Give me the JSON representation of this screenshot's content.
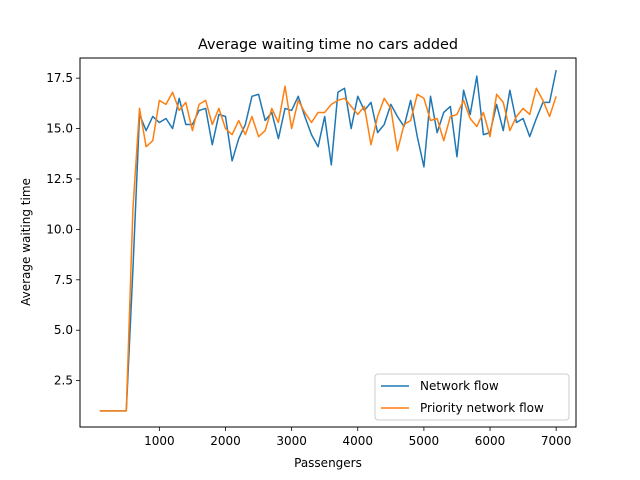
{
  "chart_data": {
    "type": "line",
    "title": "Average waiting time no cars added",
    "xlabel": "Passengers",
    "ylabel": "Average waiting time",
    "xlim": [
      -200,
      7300
    ],
    "ylim": [
      0.2,
      18.5
    ],
    "xticks": [
      1000,
      2000,
      3000,
      4000,
      5000,
      6000,
      7000
    ],
    "xtick_labels": [
      "1000",
      "2000",
      "3000",
      "4000",
      "5000",
      "6000",
      "7000"
    ],
    "yticks": [
      2.5,
      5.0,
      7.5,
      10.0,
      12.5,
      15.0,
      17.5
    ],
    "ytick_labels": [
      "2.5",
      "5.0",
      "7.5",
      "10.0",
      "12.5",
      "15.0",
      "17.5"
    ],
    "grid": false,
    "legend_position": "lower-right",
    "x": [
      100,
      200,
      300,
      400,
      500,
      600,
      700,
      800,
      900,
      1000,
      1100,
      1200,
      1300,
      1400,
      1500,
      1600,
      1700,
      1800,
      1900,
      2000,
      2100,
      2200,
      2300,
      2400,
      2500,
      2600,
      2700,
      2800,
      2900,
      3000,
      3100,
      3200,
      3300,
      3400,
      3500,
      3600,
      3700,
      3800,
      3900,
      4000,
      4100,
      4200,
      4300,
      4400,
      4500,
      4600,
      4700,
      4800,
      4900,
      5000,
      5100,
      5200,
      5300,
      5400,
      5500,
      5600,
      5700,
      5800,
      5900,
      6000,
      6100,
      6200,
      6300,
      6400,
      6500,
      6600,
      6700,
      6800,
      6900,
      7000
    ],
    "series": [
      {
        "name": "Network flow",
        "color": "#1f77b4",
        "values": [
          1.0,
          1.0,
          1.0,
          1.0,
          1.0,
          8.0,
          15.7,
          14.9,
          15.6,
          15.3,
          15.5,
          15.0,
          16.5,
          15.2,
          15.2,
          15.9,
          16.0,
          14.2,
          15.7,
          15.6,
          13.4,
          14.5,
          15.2,
          16.6,
          16.7,
          15.4,
          15.8,
          14.5,
          16.0,
          15.9,
          16.6,
          15.6,
          14.7,
          14.1,
          15.6,
          13.2,
          16.8,
          17.0,
          15.0,
          16.6,
          15.9,
          16.3,
          14.8,
          15.2,
          16.2,
          15.6,
          15.1,
          16.4,
          14.6,
          13.1,
          16.6,
          14.8,
          15.8,
          16.1,
          13.6,
          16.9,
          15.7,
          17.6,
          14.7,
          14.8,
          16.2,
          14.9,
          16.9,
          15.3,
          15.5,
          14.6,
          15.5,
          16.3,
          16.3,
          17.9
        ]
      },
      {
        "name": "Priority network flow",
        "color": "#ff7f0e",
        "values": [
          1.0,
          1.0,
          1.0,
          1.0,
          1.0,
          11.0,
          16.0,
          14.1,
          14.4,
          16.4,
          16.2,
          16.8,
          15.9,
          16.3,
          14.9,
          16.2,
          16.4,
          15.2,
          16.0,
          15.0,
          14.7,
          15.4,
          14.7,
          15.6,
          14.6,
          14.9,
          16.0,
          15.3,
          17.1,
          15.0,
          16.4,
          15.8,
          15.3,
          15.8,
          15.8,
          16.2,
          16.4,
          16.5,
          16.1,
          15.7,
          16.1,
          14.2,
          15.6,
          16.5,
          16.0,
          13.9,
          15.2,
          15.4,
          16.7,
          16.5,
          15.4,
          15.5,
          14.4,
          15.6,
          15.7,
          16.4,
          15.5,
          15.1,
          15.8,
          14.6,
          16.7,
          16.3,
          14.9,
          15.6,
          16.0,
          15.7,
          17.0,
          16.4,
          15.6,
          16.6
        ]
      }
    ]
  }
}
